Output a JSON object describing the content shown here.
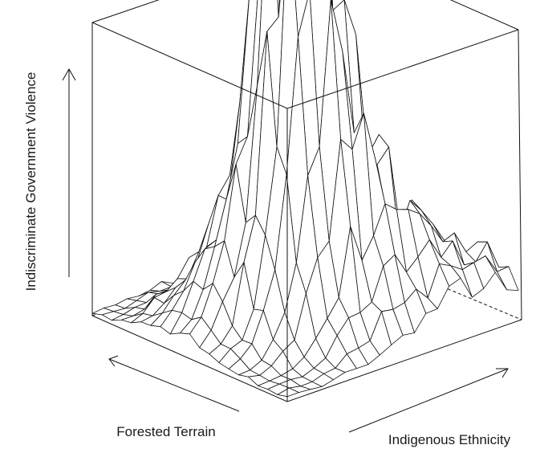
{
  "chart_data": {
    "type": "surface",
    "title": "",
    "xlabel": "Forested Terrain",
    "ylabel": "Indigenous Ethnicity",
    "zlabel": "Indiscriminate Government Violence",
    "grid_size": [
      20,
      20
    ],
    "peaks": [
      {
        "x": 0.62,
        "y": 0.38,
        "z": 1.0,
        "spread": 0.02
      },
      {
        "x": 0.5,
        "y": 0.42,
        "z": 0.62,
        "spread": 0.035
      },
      {
        "x": 0.68,
        "y": 0.48,
        "z": 0.55,
        "spread": 0.035
      },
      {
        "x": 0.42,
        "y": 0.3,
        "z": 0.32,
        "spread": 0.05
      },
      {
        "x": 0.78,
        "y": 0.7,
        "z": 0.22,
        "spread": 0.06
      },
      {
        "x": 0.35,
        "y": 0.62,
        "z": 0.18,
        "spread": 0.05
      },
      {
        "x": 0.88,
        "y": 0.9,
        "z": 0.14,
        "spread": 0.05
      }
    ],
    "colors": {
      "line": "#111111",
      "face": "#ffffff"
    }
  }
}
